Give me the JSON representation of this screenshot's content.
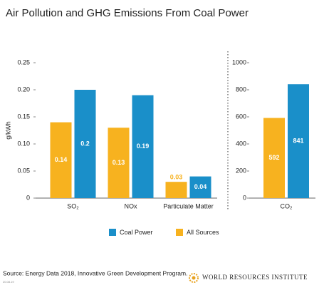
{
  "title": "Air Pollution and GHG Emissions From Coal Power",
  "source": "Source: Energy Data 2018, Innovative Green Development Program.",
  "date_code": "20.08.19",
  "logo": "WORLD RESOURCES INSTITUTE",
  "chart_data": [
    {
      "type": "bar",
      "ylabel": "g/kWh",
      "categories": [
        "SO₂",
        "NOx",
        "Particulate Matter"
      ],
      "series": [
        {
          "name": "All Sources",
          "color": "#f7b21f",
          "values": [
            0.14,
            0.13,
            0.03
          ]
        },
        {
          "name": "Coal Power",
          "color": "#1a8fc9",
          "values": [
            0.2,
            0.19,
            0.04
          ]
        }
      ],
      "ylim": [
        0,
        0.25
      ],
      "yticks": [
        0,
        0.05,
        {
          "value": 0.1,
          "label": "0.10"
        },
        0.15,
        {
          "value": 0.2,
          "label": "0.20"
        },
        0.25
      ]
    },
    {
      "type": "bar",
      "categories": [
        "CO₂"
      ],
      "series": [
        {
          "color": "#f7b21f",
          "values": [
            592
          ]
        },
        {
          "color": "#1a8fc9",
          "values": [
            841
          ]
        }
      ],
      "ylim": [
        0,
        1000
      ],
      "yticks": [
        0,
        200,
        400,
        600,
        800,
        1000
      ]
    }
  ]
}
